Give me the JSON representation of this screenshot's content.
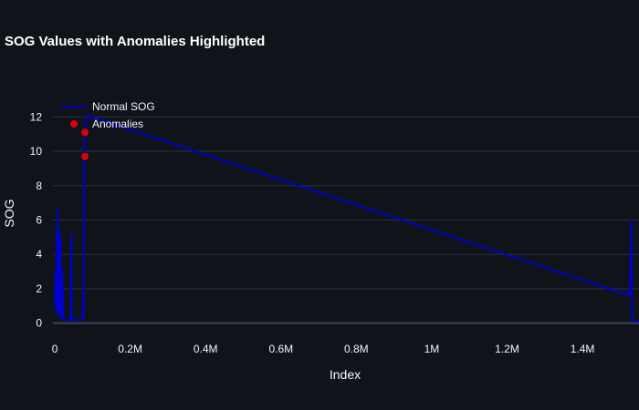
{
  "chart_data": {
    "type": "line",
    "title": "SOG Values with Anomalies Highlighted",
    "xlabel": "Index",
    "ylabel": "SOG",
    "xlim": [
      -5000,
      1550000
    ],
    "ylim": [
      -0.6,
      13.5
    ],
    "x_ticks": [
      0,
      200000,
      400000,
      600000,
      800000,
      1000000,
      1200000,
      1400000
    ],
    "x_tick_labels": [
      "0",
      "0.2M",
      "0.4M",
      "0.6M",
      "0.8M",
      "1M",
      "1.2M",
      "1.4M"
    ],
    "y_ticks": [
      0,
      2,
      4,
      6,
      8,
      10,
      12
    ],
    "y_tick_labels": [
      "0",
      "2",
      "4",
      "6",
      "8",
      "10",
      "12"
    ],
    "grid": true,
    "legend_position": "top-left",
    "series": [
      {
        "name": "Normal SOG",
        "type": "line",
        "color": "#0000cd",
        "x": [
          0,
          2000,
          4000,
          5000,
          6000,
          7000,
          8000,
          9000,
          10000,
          11000,
          12000,
          13000,
          14000,
          15000,
          16000,
          17000,
          18000,
          19000,
          20000,
          21000,
          22000,
          24000,
          30000,
          40000,
          42000,
          43000,
          44000,
          45000,
          46000,
          47000,
          60000,
          70000,
          72000,
          74000,
          75000,
          76000,
          77000,
          78000,
          80000,
          82000,
          84000,
          1525000,
          1530000,
          1531000,
          1533000,
          1535000,
          1540000,
          1550000
        ],
        "y": [
          1.0,
          3.0,
          0.8,
          5.5,
          0.7,
          6.6,
          0.5,
          4.2,
          1.5,
          5.5,
          0.6,
          3.5,
          1.0,
          5.0,
          0.3,
          2.0,
          0.8,
          3.2,
          0.5,
          2.2,
          0.2,
          0.2,
          0.2,
          0.2,
          0.2,
          4.8,
          5.2,
          0.5,
          0.2,
          0.2,
          0.2,
          0.2,
          0.2,
          0.3,
          1.8,
          0.4,
          3.5,
          10.2,
          11.2,
          11.7,
          12.1,
          1.6,
          6.0,
          0.8,
          0.2,
          0.1,
          0.1,
          0.1
        ]
      },
      {
        "name": "Anomalies",
        "type": "scatter",
        "color": "#e0000a",
        "x": [
          80000,
          80000
        ],
        "y": [
          11.1,
          9.7
        ]
      }
    ]
  }
}
